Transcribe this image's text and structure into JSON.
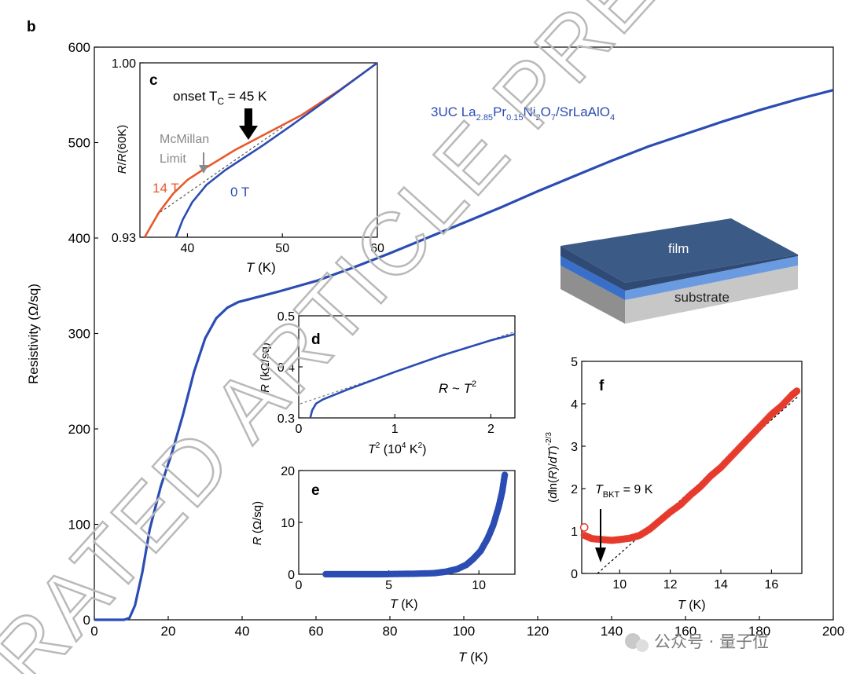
{
  "panel_label": "b",
  "annotation": {
    "title": {
      "pre": "3UC La",
      "s1": "2.85",
      "mid1": "Pr",
      "s2": "0.15",
      "mid2": "Ni",
      "s3": "2",
      "mid3": "O",
      "s4": "7",
      "mid4": "/SrLaAlO",
      "s5": "4"
    },
    "film_label": "film",
    "substrate_label": "substrate"
  },
  "watermark": {
    "line1": "RATED ARTICLE PRE"
  },
  "footer": {
    "source": "公众号 · 量子位"
  },
  "colors": {
    "blue": "#2b4db3",
    "orange": "#e8582a",
    "red": "#e53b2c",
    "gray": "#8a8a8a"
  },
  "chart_data": [
    {
      "id": "b",
      "type": "line",
      "xlabel": "T (K)",
      "ylabel": "Resistivity (Ω/sq)",
      "xlim": [
        0,
        200
      ],
      "ylim": [
        0,
        600
      ],
      "xticks": [
        "0",
        "20",
        "40",
        "60",
        "80",
        "100",
        "120",
        "140",
        "160",
        "180",
        "200"
      ],
      "yticks": [
        "0",
        "100",
        "200",
        "300",
        "400",
        "500",
        "600"
      ],
      "series": [
        {
          "name": "3UC La2.85Pr0.15Ni2O7/SrLaAlO4",
          "x": [
            0,
            8,
            9.5,
            11,
            13,
            15,
            18,
            21,
            24,
            27,
            30,
            33,
            36,
            39,
            42,
            46,
            50,
            60,
            70,
            80,
            90,
            100,
            110,
            120,
            130,
            140,
            150,
            160,
            170,
            180,
            190,
            200
          ],
          "y": [
            0,
            0,
            2,
            15,
            50,
            95,
            140,
            175,
            215,
            260,
            295,
            316,
            327,
            333,
            336,
            340,
            344,
            355,
            369,
            384,
            400,
            416,
            432,
            449,
            465,
            481,
            496,
            509,
            522,
            534,
            545,
            555
          ]
        }
      ]
    },
    {
      "id": "c",
      "type": "line",
      "xlabel": "T (K)",
      "ylabel": "R/R(60K)",
      "xlim": [
        35,
        60
      ],
      "ylim": [
        0.93,
        1.0
      ],
      "xticks": [
        "40",
        "50",
        "60"
      ],
      "yticks": [
        "0.93",
        "1.00"
      ],
      "annotations": [
        "onset T",
        "C",
        " = 45 K",
        "McMillan",
        "Limit"
      ],
      "series": [
        {
          "name": "14 T",
          "x": [
            35.5,
            37,
            38.5,
            40,
            42,
            45,
            48,
            52,
            56,
            60
          ],
          "y": [
            0.93,
            0.94,
            0.9475,
            0.953,
            0.958,
            0.965,
            0.971,
            0.979,
            0.989,
            1.0
          ]
        },
        {
          "name": "0 T",
          "x": [
            38.8,
            39.5,
            40.5,
            42,
            44,
            46,
            48,
            51,
            55,
            60
          ],
          "y": [
            0.93,
            0.937,
            0.944,
            0.951,
            0.957,
            0.962,
            0.967,
            0.975,
            0.986,
            1.0
          ]
        }
      ]
    },
    {
      "id": "d",
      "type": "line",
      "xlabel": "T² (10⁴ K²)",
      "ylabel": "R (kΩ/sq)",
      "xlim": [
        0,
        2.25
      ],
      "ylim": [
        0.3,
        0.5
      ],
      "xticks": [
        "0",
        "1",
        "2"
      ],
      "yticks": [
        "0.3",
        "0.4",
        "0.5"
      ],
      "annotation": "R ~ T²",
      "series": [
        {
          "name": "R",
          "x": [
            0.12,
            0.14,
            0.18,
            0.25,
            0.5,
            1.0,
            1.5,
            2.0,
            2.25
          ],
          "y": [
            0.3,
            0.315,
            0.328,
            0.336,
            0.355,
            0.39,
            0.423,
            0.452,
            0.464
          ]
        }
      ]
    },
    {
      "id": "e",
      "type": "scatter",
      "xlabel": "T (K)",
      "ylabel": "R (Ω/sq)",
      "xlim": [
        0,
        12
      ],
      "ylim": [
        0,
        20
      ],
      "xticks": [
        "0",
        "5",
        "10"
      ],
      "yticks": [
        "0",
        "10",
        "20"
      ],
      "series": [
        {
          "name": "R",
          "x": [
            1.5,
            2.5,
            3.5,
            4.5,
            5.5,
            6.5,
            7.5,
            8.2,
            8.8,
            9.3,
            9.7,
            10.1,
            10.5,
            10.8,
            11.1,
            11.3,
            11.45
          ],
          "y": [
            0,
            0,
            0,
            0,
            0.05,
            0.1,
            0.2,
            0.5,
            1,
            1.8,
            3,
            4.5,
            7,
            9.5,
            13,
            16,
            19.5
          ]
        }
      ]
    },
    {
      "id": "f",
      "type": "scatter",
      "xlabel": "T (K)",
      "ylabel": "(dln(R)/dT)^-2/3",
      "xlim": [
        8.5,
        17.2
      ],
      "ylim": [
        0,
        5
      ],
      "xticks": [
        "10",
        "12",
        "14",
        "16"
      ],
      "yticks": [
        "0",
        "1",
        "2",
        "3",
        "4",
        "5"
      ],
      "annotation": "T = 9 K",
      "annotation_sub": "BKT",
      "series": [
        {
          "name": "data",
          "x": [
            8.6,
            8.9,
            9.3,
            9.7,
            10.0,
            10.4,
            10.8,
            11.2,
            11.6,
            12.0,
            12.4,
            12.8,
            13.2,
            13.6,
            14.0,
            14.4,
            14.8,
            15.2,
            15.6,
            16.0,
            16.4,
            16.8,
            17.0
          ],
          "y": [
            0.9,
            0.82,
            0.8,
            0.78,
            0.8,
            0.83,
            0.9,
            1.05,
            1.25,
            1.45,
            1.62,
            1.85,
            2.05,
            2.3,
            2.5,
            2.75,
            3.0,
            3.25,
            3.5,
            3.75,
            3.95,
            4.2,
            4.3
          ]
        }
      ]
    }
  ]
}
